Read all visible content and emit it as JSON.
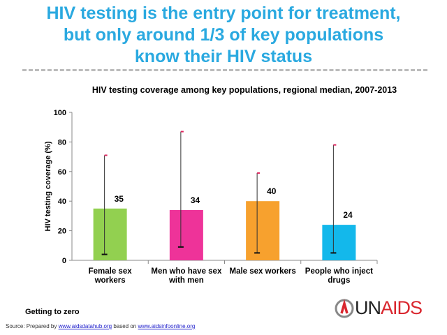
{
  "title_lines": [
    "HIV testing is the entry point for treatment,",
    "but only around 1/3 of key populations",
    "know their HIV status"
  ],
  "chart_data": {
    "type": "bar",
    "title": "HIV testing coverage among key populations, regional median, 2007-2013",
    "ylabel": "HIV testing coverage (%)",
    "xlabel": "",
    "ylim": [
      0,
      100
    ],
    "yticks": [
      0,
      20,
      40,
      60,
      80,
      100
    ],
    "categories": [
      [
        "Female sex",
        "workers"
      ],
      [
        "Men who have sex",
        "with men"
      ],
      [
        "Male sex workers"
      ],
      [
        "People who inject",
        "drugs"
      ]
    ],
    "values": [
      35,
      34,
      40,
      24
    ],
    "data_labels": [
      "35",
      "34",
      "40",
      "24"
    ],
    "ranges": [
      [
        4,
        71
      ],
      [
        9,
        87
      ],
      [
        5,
        59
      ],
      [
        5,
        78
      ]
    ],
    "colors": [
      "#92d050",
      "#ee3399",
      "#f7a12e",
      "#13b8eb"
    ],
    "grid": false
  },
  "footer": {
    "tagline": "Getting to zero",
    "source_prefix": "Source:  Prepared by ",
    "link1": "www.aidsdatahub.org",
    "middle": " based on ",
    "link2": "www.aidsinfoonline.org",
    "logo_text": "UNAIDS"
  }
}
